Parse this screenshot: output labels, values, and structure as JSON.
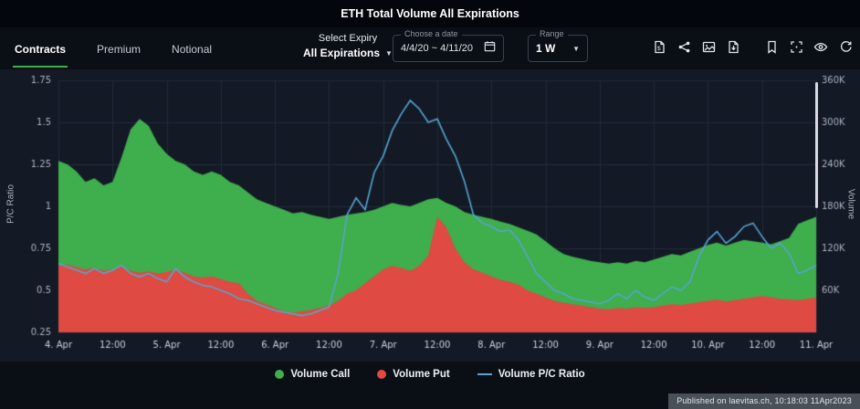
{
  "header": {
    "title": "ETH Total Volume All Expirations"
  },
  "tabs": [
    {
      "label": "Contracts",
      "active": true
    },
    {
      "label": "Premium",
      "active": false
    },
    {
      "label": "Notional",
      "active": false
    }
  ],
  "controls": {
    "expiry_label": "Select Expiry",
    "expiry_value": "All Expirations",
    "date_label": "Choose a date",
    "date_value": "4/4/20 ~ 4/11/20",
    "range_label": "Range",
    "range_value": "1 W"
  },
  "icons": [
    {
      "name": "export-data-icon"
    },
    {
      "name": "share-icon"
    },
    {
      "name": "image-icon"
    },
    {
      "name": "save-image-icon"
    },
    {
      "name": "bookmark-icon"
    },
    {
      "name": "fullscreen-icon"
    },
    {
      "name": "eye-icon"
    },
    {
      "name": "refresh-icon"
    }
  ],
  "footer": {
    "published": "Published on laevitas.ch, 10:18:03 11Apr2023"
  },
  "colors": {
    "page_bg": "#0a0e15",
    "chart_bg": "#131a26",
    "grid": "#222b3a",
    "tick_text": "#aab2be",
    "x_text": "#ccd1d9",
    "call": "#3fae4c",
    "put": "#df4a42",
    "ratio_line": "#56a5d2",
    "accent": "#3fae4c"
  },
  "chart_data": {
    "type": "area",
    "subtype": "stacked-area-with-line",
    "title": "ETH Total Volume All Expirations",
    "x_start": "4. Apr",
    "x_end": "11. Apr",
    "step_hours": 2,
    "x_tick_labels": [
      "4. Apr",
      "12:00",
      "5. Apr",
      "12:00",
      "6. Apr",
      "12:00",
      "7. Apr",
      "12:00",
      "8. Apr",
      "12:00",
      "9. Apr",
      "12:00",
      "10. Apr",
      "12:00",
      "11. Apr"
    ],
    "x_tick_positions": [
      0,
      6,
      12,
      18,
      24,
      30,
      36,
      42,
      48,
      54,
      60,
      66,
      72,
      78,
      84
    ],
    "y_left": {
      "label": "P/C Ratio",
      "min": 0.25,
      "max": 1.75,
      "tick_values": [
        0.25,
        0.5,
        0.75,
        1,
        1.25,
        1.5,
        1.75
      ],
      "tick_labels": [
        "0.25",
        "0.5",
        "0.75",
        "1",
        "1.25",
        "1.5",
        "1.75"
      ]
    },
    "y_right": {
      "label": "Volume",
      "min_k": 0,
      "max_k": 360,
      "tick_values_k": [
        60,
        120,
        180,
        240,
        300,
        360
      ],
      "tick_labels": [
        "60K",
        "120K",
        "180K",
        "240K",
        "300K",
        "360K"
      ]
    },
    "grid": true,
    "legend_position": "bottom",
    "series": [
      {
        "name": "Volume Call",
        "type": "area-stacked",
        "axis": "right",
        "color": "#3fae4c",
        "values_k": [
          150,
          143,
          137,
          125,
          128,
          122,
          125,
          156,
          202,
          220,
          208,
          186,
          169,
          155,
          155,
          150,
          147,
          150,
          149,
          143,
          140,
          145,
          145,
          145,
          145,
          145,
          142,
          142,
          136,
          130,
          124,
          120,
          113,
          110,
          102,
          95,
          90,
          90,
          90,
          92,
          90,
          80,
          27,
          35,
          60,
          72,
          78,
          80,
          82,
          83,
          83,
          82,
          85,
          85,
          80,
          75,
          70,
          68,
          67,
          66,
          66,
          65,
          65,
          64,
          66,
          65,
          68,
          70,
          72,
          71,
          74,
          77,
          80,
          81,
          80,
          82,
          84,
          80,
          76,
          76,
          82,
          88,
          109,
          112,
          115
        ]
      },
      {
        "name": "Volume Put",
        "type": "area-stacked",
        "axis": "right",
        "color": "#df4a42",
        "values_k": [
          95,
          97,
          93,
          90,
          92,
          88,
          90,
          94,
          88,
          85,
          87,
          84,
          86,
          90,
          85,
          80,
          78,
          80,
          76,
          72,
          70,
          55,
          45,
          40,
          35,
          30,
          28,
          30,
          32,
          35,
          38,
          45,
          55,
          60,
          70,
          80,
          90,
          95,
          92,
          88,
          95,
          110,
          165,
          150,
          120,
          100,
          90,
          85,
          80,
          75,
          72,
          68,
          60,
          55,
          50,
          45,
          42,
          40,
          38,
          36,
          34,
          33,
          35,
          34,
          36,
          35,
          36,
          38,
          40,
          39,
          41,
          43,
          45,
          47,
          44,
          46,
          48,
          50,
          52,
          50,
          48,
          47,
          46,
          48,
          50
        ]
      },
      {
        "name": "Volume P/C Ratio",
        "type": "line",
        "axis": "left",
        "color": "#56a5d2",
        "values": [
          0.66,
          0.64,
          0.62,
          0.6,
          0.63,
          0.6,
          0.62,
          0.65,
          0.6,
          0.58,
          0.6,
          0.57,
          0.55,
          0.63,
          0.58,
          0.55,
          0.53,
          0.52,
          0.5,
          0.48,
          0.45,
          0.44,
          0.42,
          0.4,
          0.38,
          0.37,
          0.36,
          0.35,
          0.36,
          0.38,
          0.4,
          0.6,
          0.95,
          1.05,
          0.98,
          1.2,
          1.3,
          1.45,
          1.55,
          1.63,
          1.58,
          1.5,
          1.52,
          1.4,
          1.3,
          1.15,
          0.95,
          0.9,
          0.88,
          0.85,
          0.86,
          0.8,
          0.7,
          0.6,
          0.55,
          0.5,
          0.48,
          0.45,
          0.44,
          0.43,
          0.42,
          0.44,
          0.48,
          0.45,
          0.5,
          0.46,
          0.44,
          0.48,
          0.52,
          0.5,
          0.55,
          0.7,
          0.8,
          0.85,
          0.78,
          0.82,
          0.88,
          0.9,
          0.82,
          0.75,
          0.78,
          0.72,
          0.6,
          0.62,
          0.65
        ]
      }
    ]
  }
}
